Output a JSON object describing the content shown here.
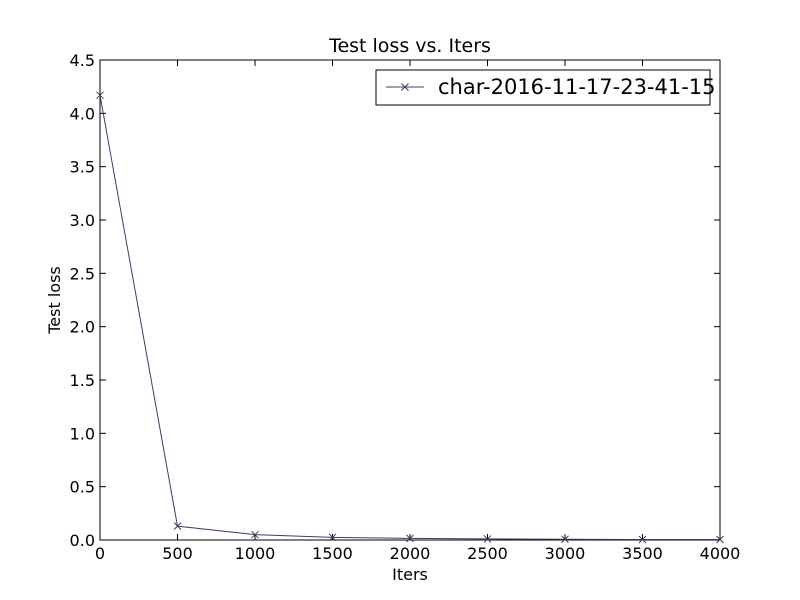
{
  "chart_data": {
    "type": "line",
    "title": "Test loss  vs. Iters",
    "xlabel": "Iters",
    "ylabel": "Test loss",
    "xlim": [
      0,
      4000
    ],
    "ylim": [
      0,
      4.5
    ],
    "x_ticks": [
      0,
      500,
      1000,
      1500,
      2000,
      2500,
      3000,
      3500,
      4000
    ],
    "x_tick_labels": [
      "0",
      "500",
      "1000",
      "1500",
      "2000",
      "2500",
      "3000",
      "3500",
      "4000"
    ],
    "y_ticks": [
      0,
      0.5,
      1.0,
      1.5,
      2.0,
      2.5,
      3.0,
      3.5,
      4.0,
      4.5
    ],
    "y_tick_labels": [
      "0.0",
      "0.5",
      "1.0",
      "1.5",
      "2.0",
      "2.5",
      "3.0",
      "3.5",
      "4.0",
      "4.5"
    ],
    "grid": false,
    "legend_position": "top-right",
    "series": [
      {
        "name": "char-2016-11-17-23-41-15",
        "color": "#3d3d66",
        "marker": "x",
        "x": [
          0,
          500,
          1000,
          1500,
          2000,
          2500,
          3000,
          3500,
          4000
        ],
        "y": [
          4.17,
          0.13,
          0.05,
          0.025,
          0.015,
          0.01,
          0.007,
          0.005,
          0.005
        ]
      }
    ]
  }
}
